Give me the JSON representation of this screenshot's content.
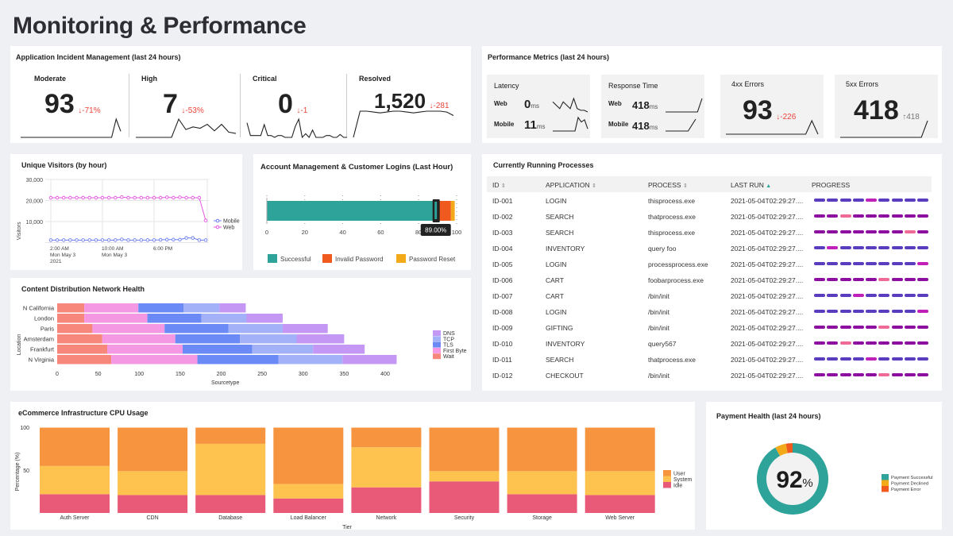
{
  "page_title": "Monitoring & Performance",
  "incidents": {
    "title": "Application Incident Management (last 24 hours)",
    "items": [
      {
        "label": "Moderate",
        "value": "93",
        "delta": "-71%",
        "spark": [
          0,
          0,
          0,
          0,
          0,
          0,
          0,
          0,
          0,
          0,
          0,
          0,
          0,
          0,
          0,
          0,
          0,
          0,
          0,
          0,
          0,
          6,
          2
        ]
      },
      {
        "label": "High",
        "value": "7",
        "delta": "-53%",
        "spark": [
          0,
          0,
          0,
          0,
          0,
          0,
          7,
          3,
          4,
          3.5,
          5,
          2.5,
          5,
          2,
          1.5
        ]
      },
      {
        "label": "Critical",
        "value": "0",
        "delta": "-1",
        "spark": [
          4,
          0.5,
          0.5,
          0.5,
          0.5,
          3.5,
          0.5,
          0.5,
          0,
          0.5,
          0.5,
          0,
          0,
          0,
          3,
          5,
          0,
          1,
          0,
          2,
          0,
          0,
          0,
          0.5,
          0.5,
          0,
          0,
          0.8,
          0,
          0
        ]
      },
      {
        "label": "Resolved",
        "value": "1,520",
        "delta": "-281",
        "spark": [
          0,
          3,
          3,
          2.9,
          2.8,
          2.9,
          3,
          3,
          2.9,
          2.8,
          2.9,
          3,
          3,
          3,
          2.9,
          2.5
        ]
      }
    ]
  },
  "performance": {
    "title": "Performance Metrics (last 24 hours)",
    "latency": {
      "label": "Latency",
      "web_label": "Web",
      "web_value": "0",
      "mobile_label": "Mobile",
      "mobile_value": "11",
      "unit": "ms",
      "web_spark": [
        3,
        2,
        1,
        3,
        2,
        1,
        4,
        1,
        0.5,
        0.5,
        0
      ],
      "mobile_spark": [
        0,
        0,
        0,
        0,
        0,
        0,
        0,
        0,
        3,
        2,
        2.5,
        0.5
      ]
    },
    "response": {
      "label": "Response Time",
      "web_label": "Web",
      "web_value": "418",
      "mobile_label": "Mobile",
      "mobile_value": "418",
      "unit": "ms",
      "web_spark": [
        0,
        0,
        0,
        0,
        0,
        0,
        0,
        0,
        3
      ],
      "mobile_spark": [
        0,
        0,
        0,
        0,
        3
      ]
    },
    "errors4xx": {
      "label": "4xx Errors",
      "value": "93",
      "delta": "-226",
      "spark": [
        0,
        0,
        0,
        0,
        0,
        0,
        0,
        0,
        0,
        0,
        0,
        0,
        0,
        0,
        5,
        0
      ]
    },
    "errors5xx": {
      "label": "5xx Errors",
      "value": "418",
      "delta": "418",
      "spark": [
        0,
        0,
        0,
        0,
        0,
        0,
        0,
        0,
        0,
        0,
        0,
        0,
        0,
        0,
        5
      ]
    }
  },
  "visitors": {
    "title": "Unique Visitors (by hour)",
    "chart_data": {
      "type": "line",
      "ylabel": "Visitors",
      "yticks": [
        "30,000",
        "20,000",
        "10,000"
      ],
      "ylim": [
        0,
        30000
      ],
      "xticks": [
        {
          "index": 0,
          "lines": [
            "2:00 AM",
            "Mon May 3",
            "2021"
          ]
        },
        {
          "index": 8,
          "lines": [
            "10:00 AM",
            "Mon May 3"
          ]
        },
        {
          "index": 16,
          "lines": [
            "6:00 PM"
          ]
        }
      ],
      "series": [
        {
          "name": "Mobile",
          "color": "#6b7ff0",
          "values": [
            1200,
            1200,
            1200,
            1200,
            1200,
            1200,
            1200,
            1200,
            1200,
            1200,
            1200,
            1500,
            1200,
            1200,
            1200,
            1200,
            1200,
            1300,
            1400,
            1400,
            1400,
            2200,
            2200,
            1200,
            1200
          ]
        },
        {
          "name": "Web",
          "color": "#e356e0",
          "values": [
            21300,
            21300,
            21300,
            21300,
            21300,
            21300,
            21300,
            21300,
            21300,
            21300,
            21300,
            21600,
            21300,
            21300,
            21300,
            21300,
            21300,
            21300,
            21500,
            21300,
            21500,
            21300,
            21300,
            21300,
            10500
          ]
        }
      ]
    }
  },
  "logins": {
    "title": "Account Management & Customer Logins (Last Hour)",
    "chart_data": {
      "type": "bar",
      "orientation": "horizontal",
      "stacked": true,
      "xlim": [
        0,
        100
      ],
      "xticks": [
        "0",
        "20",
        "40",
        "60",
        "80",
        "100"
      ],
      "series": [
        {
          "name": "Successful",
          "value": 89,
          "color": "#2ea39a"
        },
        {
          "name": "Invalid Password",
          "value": 8,
          "color": "#f05a1e"
        },
        {
          "name": "Password Reset",
          "value": 2,
          "color": "#f2a91a"
        }
      ],
      "tooltip": "89.00%"
    }
  },
  "cdn": {
    "title": "Content Distribution Network Health",
    "chart_data": {
      "type": "bar",
      "orientation": "horizontal",
      "stacked": true,
      "xlabel": "Sourcetype",
      "ylabel": "Location",
      "xlim": [
        0,
        420
      ],
      "xticks": [
        "0",
        "50",
        "100",
        "150",
        "200",
        "250",
        "300",
        "350",
        "400"
      ],
      "categories": [
        "N California",
        "London",
        "Paris",
        "Amsterdam",
        "Frankfurt",
        "N Virginia"
      ],
      "series": [
        {
          "name": "Wait",
          "color": "#f7877a",
          "values": [
            33,
            33,
            43,
            55,
            61,
            66
          ]
        },
        {
          "name": "First Byte",
          "color": "#f598e4",
          "values": [
            66,
            77,
            88,
            89,
            92,
            105
          ]
        },
        {
          "name": "TLS",
          "color": "#6b8af5",
          "values": [
            55,
            66,
            78,
            79,
            85,
            99
          ]
        },
        {
          "name": "TCP",
          "color": "#a3b1f8",
          "values": [
            44,
            55,
            66,
            69,
            74,
            78
          ]
        },
        {
          "name": "DNS",
          "color": "#c597f5",
          "values": [
            32,
            44,
            55,
            58,
            63,
            66
          ]
        }
      ],
      "legend_order": [
        "DNS",
        "TCP",
        "TLS",
        "First Byte",
        "Wait"
      ]
    }
  },
  "processes": {
    "title": "Currently Running Processes",
    "columns": [
      "ID",
      "APPLICATION",
      "PROCESS",
      "LAST RUN",
      "PROGRESS"
    ],
    "colors": {
      "b": "#5a3cbf",
      "m": "#c020b8",
      "p": "#8d0fa0",
      "k": "#f06a98"
    },
    "rows": [
      {
        "id": "ID-001",
        "app": "LOGIN",
        "process": "thisprocess.exe",
        "last_run": "2021-05-04T02:29:27....",
        "progress": "bbbbmbbbb"
      },
      {
        "id": "ID-002",
        "app": "SEARCH",
        "process": "thatprocess.exe",
        "last_run": "2021-05-04T02:29:27....",
        "progress": "ppkpppppp"
      },
      {
        "id": "ID-003",
        "app": "SEARCH",
        "process": "thisprocess.exe",
        "last_run": "2021-05-04T02:29:27....",
        "progress": "pppppppkp"
      },
      {
        "id": "ID-004",
        "app": "INVENTORY",
        "process": "query foo",
        "last_run": "2021-05-04T02:29:27....",
        "progress": "bmbbbbbbb"
      },
      {
        "id": "ID-005",
        "app": "LOGIN",
        "process": "processprocess.exe",
        "last_run": "2021-05-04T02:29:27....",
        "progress": "bbbbbbbbm"
      },
      {
        "id": "ID-006",
        "app": "CART",
        "process": "foobarprocess.exe",
        "last_run": "2021-05-04T02:29:27....",
        "progress": "pppppkppp"
      },
      {
        "id": "ID-007",
        "app": "CART",
        "process": "/bin/init",
        "last_run": "2021-05-04T02:29:27....",
        "progress": "bbbmbbbbb"
      },
      {
        "id": "ID-008",
        "app": "LOGIN",
        "process": "/bin/init",
        "last_run": "2021-05-04T02:29:27....",
        "progress": "bbbbbbbbm"
      },
      {
        "id": "ID-009",
        "app": "GIFTING",
        "process": "/bin/init",
        "last_run": "2021-05-04T02:29:27....",
        "progress": "pppppkppp"
      },
      {
        "id": "ID-010",
        "app": "INVENTORY",
        "process": "query567",
        "last_run": "2021-05-04T02:29:27....",
        "progress": "ppkpppppp"
      },
      {
        "id": "ID-011",
        "app": "SEARCH",
        "process": "thatprocess.exe",
        "last_run": "2021-05-04T02:29:27....",
        "progress": "bbbbmbbbb"
      },
      {
        "id": "ID-012",
        "app": "CHECKOUT",
        "process": "/bin/init",
        "last_run": "2021-05-04T02:29:27....",
        "progress": "pppppkppp"
      }
    ]
  },
  "cpu": {
    "title": "eCommerce Infrastructure CPU Usage",
    "chart_data": {
      "type": "bar",
      "stacked": true,
      "xlabel": "Tier",
      "ylabel": "Percentage (%)",
      "ylim": [
        0,
        100
      ],
      "yticks": [
        "100",
        "50"
      ],
      "categories": [
        "Auth Server",
        "CDN",
        "Database",
        "Load Balancer",
        "Network",
        "Security",
        "Storage",
        "Web Server"
      ],
      "series": [
        {
          "name": "Idle",
          "color": "#e95a78",
          "values": [
            22,
            21,
            21,
            17,
            30,
            37,
            22,
            21
          ]
        },
        {
          "name": "System",
          "color": "#fec24e",
          "values": [
            33,
            28,
            60,
            17,
            47,
            12,
            27,
            28
          ]
        },
        {
          "name": "User",
          "color": "#f79440",
          "values": [
            45,
            51,
            19,
            66,
            23,
            51,
            51,
            51
          ]
        }
      ],
      "legend_order": [
        "User",
        "System",
        "Idle"
      ]
    }
  },
  "payment": {
    "title": "Payment Health (last 24 hours)",
    "center_value": "92",
    "center_unit": "%",
    "chart_data": {
      "type": "pie",
      "donut": true,
      "series": [
        {
          "name": "Payment Successful",
          "value": 92,
          "color": "#2ea39a"
        },
        {
          "name": "Payment Declined",
          "value": 5,
          "color": "#f2a91a"
        },
        {
          "name": "Payment Error",
          "value": 3,
          "color": "#f05a1e"
        }
      ]
    }
  }
}
